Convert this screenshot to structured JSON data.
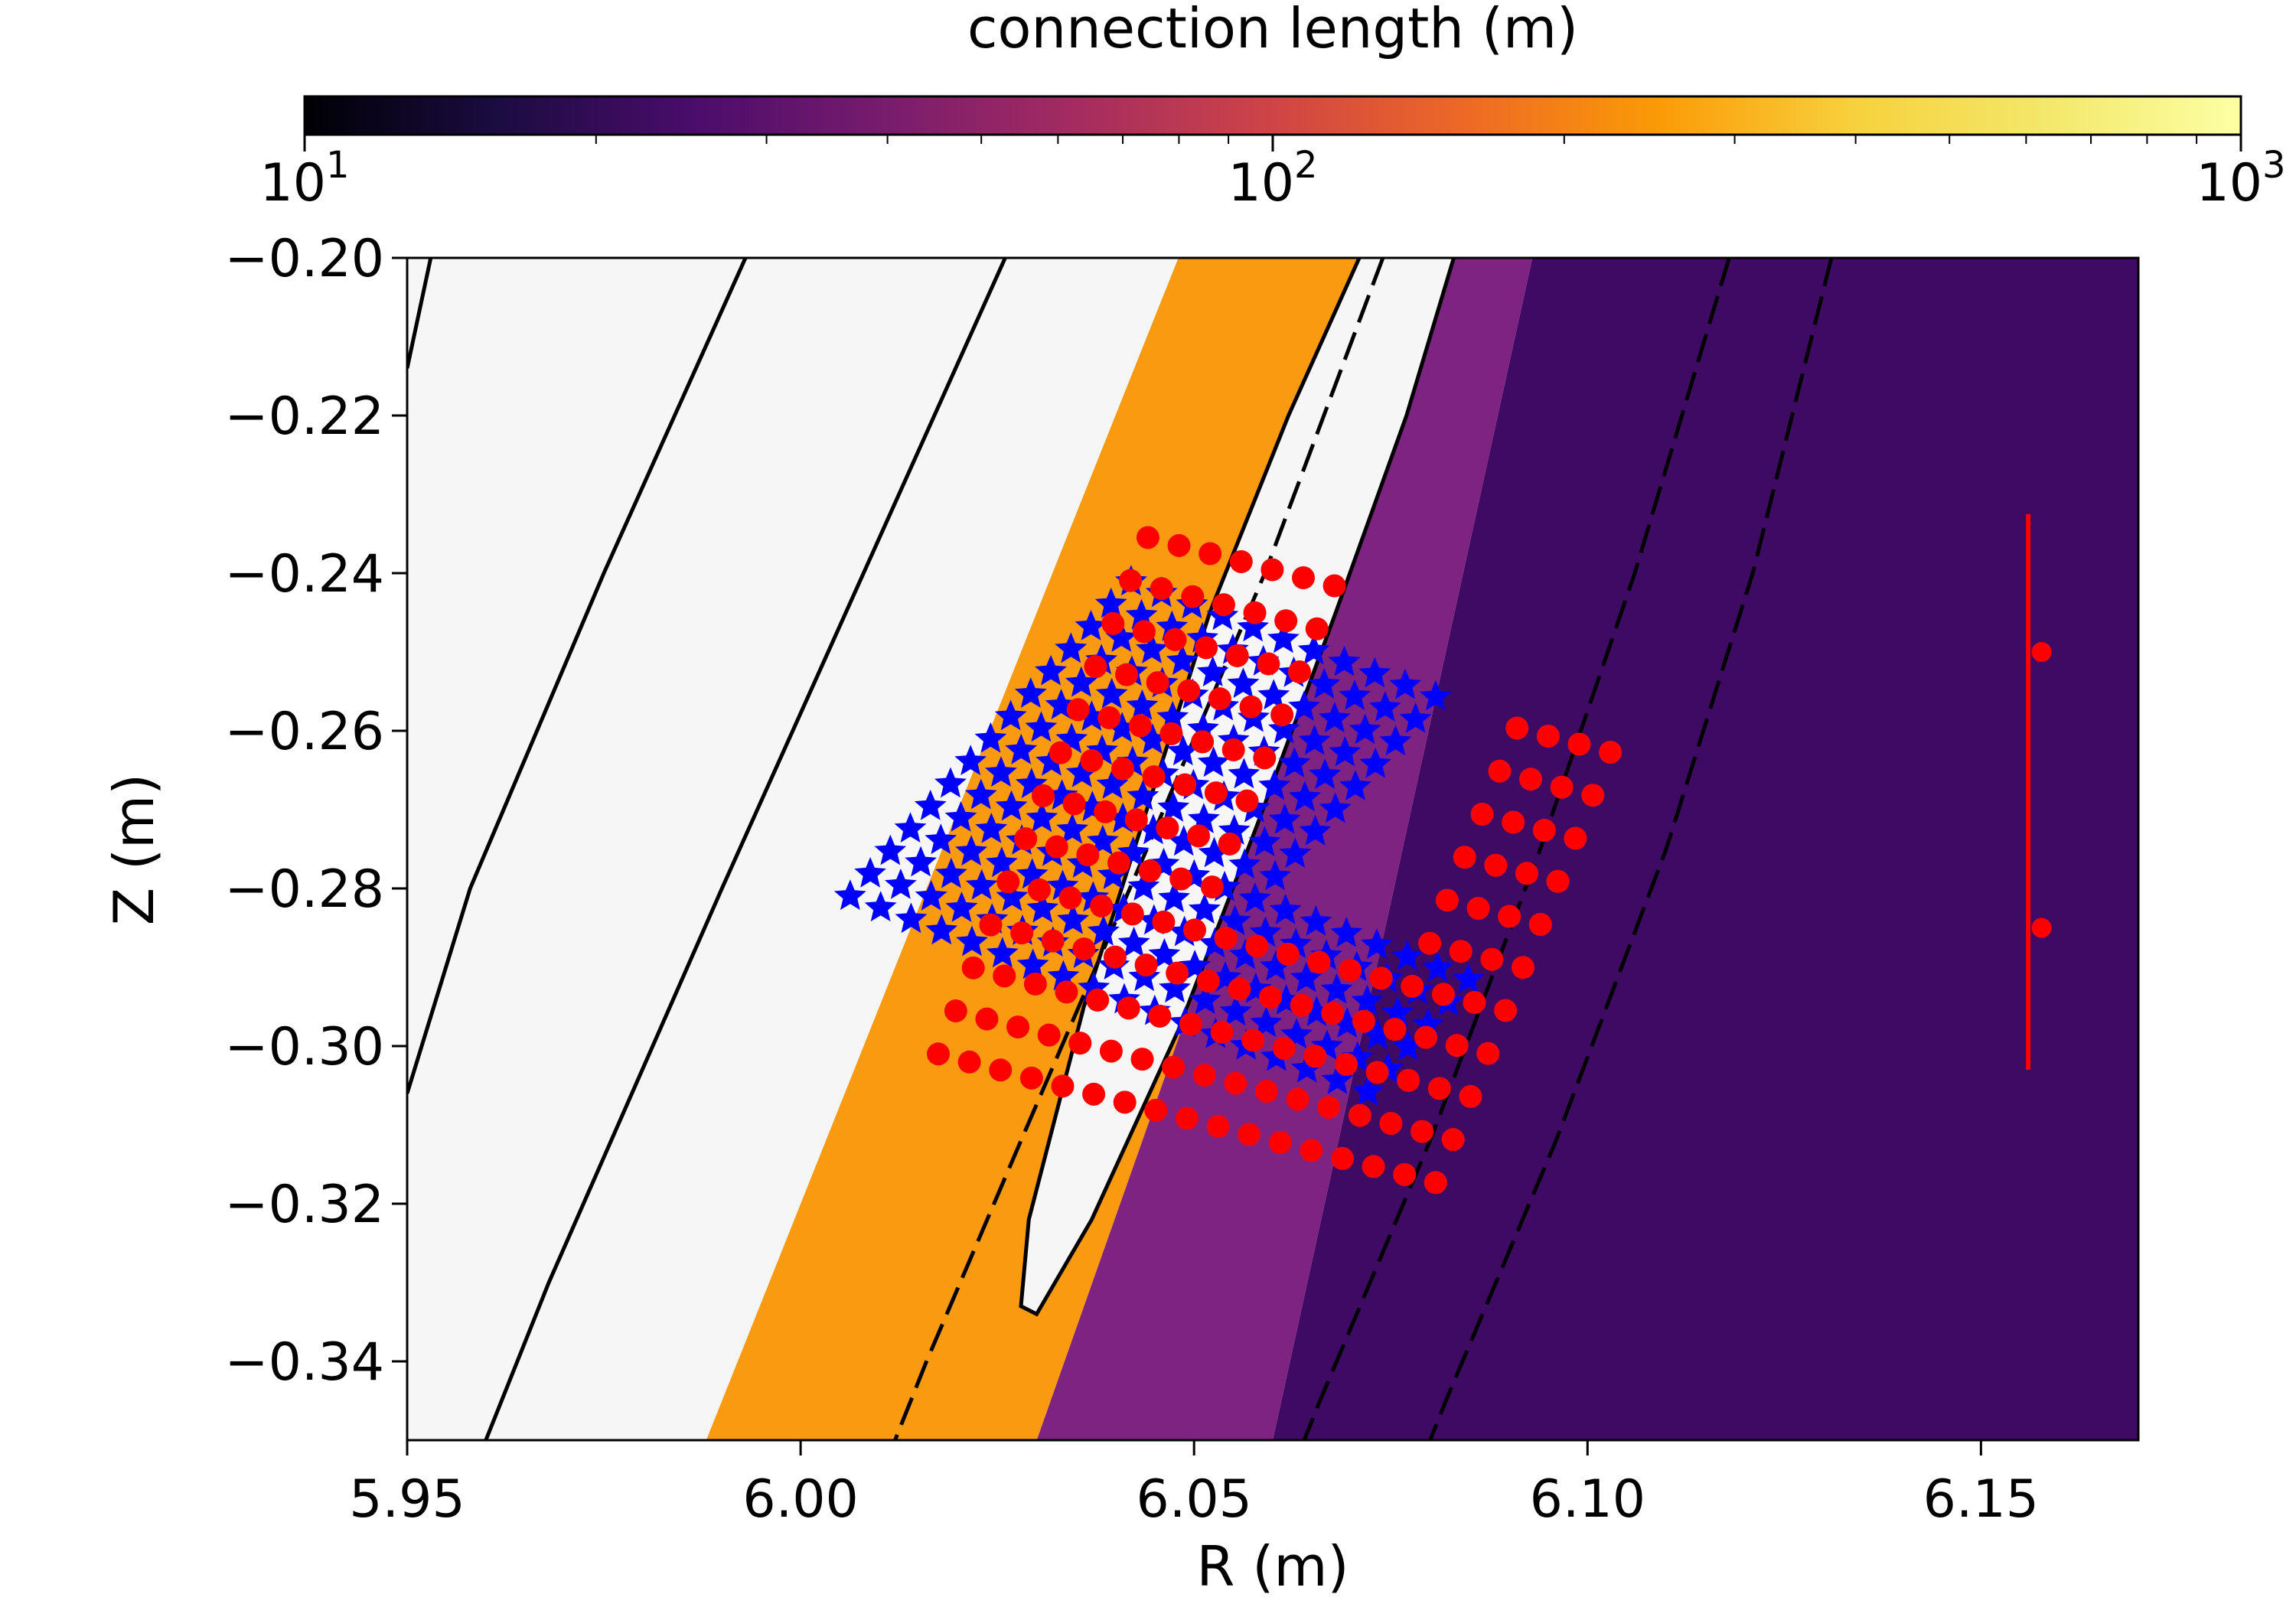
{
  "chart_data": {
    "type": "heatmap",
    "colorbar": {
      "label": "connection length (m)",
      "scale": "log",
      "range": [
        10,
        1000
      ],
      "colormap": "inferno",
      "ticks": [
        {
          "value": 10,
          "base": "10",
          "exp": "1"
        },
        {
          "value": 100,
          "base": "10",
          "exp": "2"
        },
        {
          "value": 1000,
          "base": "10",
          "exp": "3"
        }
      ]
    },
    "xlabel": "R (m)",
    "ylabel": "Z (m)",
    "xlim": [
      5.95,
      6.17
    ],
    "ylim": [
      -0.35,
      -0.2
    ],
    "xticks": [
      {
        "value": 5.95,
        "label": "5.95"
      },
      {
        "value": 6.0,
        "label": "6.00"
      },
      {
        "value": 6.05,
        "label": "6.05"
      },
      {
        "value": 6.1,
        "label": "6.10"
      },
      {
        "value": 6.15,
        "label": "6.15"
      }
    ],
    "yticks": [
      {
        "value": -0.2,
        "label": "−0.20"
      },
      {
        "value": -0.22,
        "label": "−0.22"
      },
      {
        "value": -0.24,
        "label": "−0.24"
      },
      {
        "value": -0.26,
        "label": "−0.26"
      },
      {
        "value": -0.28,
        "label": "−0.28"
      },
      {
        "value": -0.3,
        "label": "−0.30"
      },
      {
        "value": -0.32,
        "label": "−0.32"
      },
      {
        "value": -0.34,
        "label": "−0.34"
      }
    ],
    "colors": {
      "region_low_L": "#3f0a63",
      "region_high_L": "#fa9a10",
      "region_saturated": "#f6f6f6",
      "gradient_band": "#7e2382",
      "blue_markers": "#0000ff",
      "red_markers": "#ff0000"
    },
    "regions": [
      {
        "name": "long-connection (white)",
        "R_at_top": [
          5.95,
          6.048
        ],
        "R_at_bottom": [
          5.95,
          5.988
        ]
      },
      {
        "name": "orange band",
        "R_at_top": [
          6.048,
          6.083
        ],
        "R_at_bottom": [
          5.988,
          6.03
        ]
      },
      {
        "name": "purple gradient",
        "R_at_top": [
          6.083,
          6.093
        ],
        "R_at_bottom": [
          6.03,
          6.06
        ]
      },
      {
        "name": "short-connection (dark purple)",
        "R_at_top": [
          6.093,
          6.17
        ],
        "R_at_bottom": [
          6.06,
          6.17
        ]
      }
    ],
    "series": [
      {
        "name": "blue star grid",
        "marker": "star",
        "color": "#0000ff",
        "rows": 15,
        "cols": 18,
        "origin": [
          6.0063,
          -0.281
        ],
        "col_step": [
          0.00387,
          -0.00146
        ],
        "row_step": [
          0.00255,
          0.00285
        ],
        "groups": [
          {
            "rows": [
              0,
              14
            ],
            "cols": [
              0,
              10
            ]
          },
          {
            "rows": [
              0,
              5
            ],
            "cols": [
              11,
              17
            ]
          }
        ]
      },
      {
        "name": "red dot grid",
        "marker": "circle",
        "color": "#ff0000",
        "rows": 13,
        "cols": 17,
        "origin": [
          6.0175,
          -0.301
        ],
        "col_step": [
          0.00395,
          -0.00102
        ],
        "row_step": [
          0.00222,
          0.00546
        ],
        "groups": [
          {
            "rows": [
              0,
              12
            ],
            "cols": [
              0,
              6
            ]
          },
          {
            "rows": [
              0,
              4
            ],
            "cols": [
              7,
              12
            ]
          },
          {
            "rows": [
              0,
              10
            ],
            "cols": [
              13,
              16
            ]
          }
        ]
      },
      {
        "name": "reference points",
        "marker": "circle",
        "color": "#ff0000",
        "points": [
          [
            6.1577,
            -0.25
          ],
          [
            6.1577,
            -0.285
          ]
        ]
      }
    ],
    "errorbar": {
      "R": 6.156,
      "Z_range": [
        -0.303,
        -0.2325
      ]
    },
    "contours": [
      {
        "name": "separatrix-like lobe",
        "points": [
          [
            6.071,
            -0.2
          ],
          [
            6.062,
            -0.22
          ],
          [
            6.052,
            -0.245
          ],
          [
            6.044,
            -0.27
          ],
          [
            6.036,
            -0.295
          ],
          [
            6.029,
            -0.322
          ],
          [
            6.028,
            -0.333
          ],
          [
            6.03,
            -0.334
          ],
          [
            6.037,
            -0.322
          ],
          [
            6.048,
            -0.298
          ],
          [
            6.058,
            -0.272
          ],
          [
            6.068,
            -0.245
          ],
          [
            6.077,
            -0.22
          ],
          [
            6.083,
            -0.2
          ]
        ]
      },
      {
        "name": "line 1",
        "points": [
          [
            5.953,
            -0.2
          ],
          [
            5.95,
            -0.214
          ]
        ]
      },
      {
        "name": "line 2",
        "points": [
          [
            5.993,
            -0.2
          ],
          [
            5.975,
            -0.24
          ],
          [
            5.958,
            -0.28
          ],
          [
            5.95,
            -0.306
          ]
        ]
      },
      {
        "name": "line 3",
        "points": [
          [
            6.026,
            -0.2
          ],
          [
            6.008,
            -0.24
          ],
          [
            5.99,
            -0.28
          ],
          [
            5.968,
            -0.33
          ],
          [
            5.96,
            -0.35
          ]
        ]
      },
      {
        "name": "line 4",
        "points": [
          [
            6.074,
            -0.2
          ],
          [
            6.059,
            -0.24
          ],
          [
            6.044,
            -0.275
          ],
          [
            6.028,
            -0.312
          ],
          [
            6.016,
            -0.34
          ],
          [
            6.012,
            -0.35
          ]
        ]
      },
      {
        "name": "line 5",
        "points": [
          [
            6.118,
            -0.2
          ],
          [
            6.106,
            -0.24
          ],
          [
            6.094,
            -0.275
          ],
          [
            6.08,
            -0.312
          ],
          [
            6.066,
            -0.345
          ],
          [
            6.064,
            -0.35
          ]
        ]
      },
      {
        "name": "line 6",
        "points": [
          [
            6.131,
            -0.2
          ],
          [
            6.121,
            -0.24
          ],
          [
            6.11,
            -0.275
          ],
          [
            6.096,
            -0.312
          ],
          [
            6.082,
            -0.345
          ],
          [
            6.08,
            -0.35
          ]
        ]
      }
    ]
  }
}
